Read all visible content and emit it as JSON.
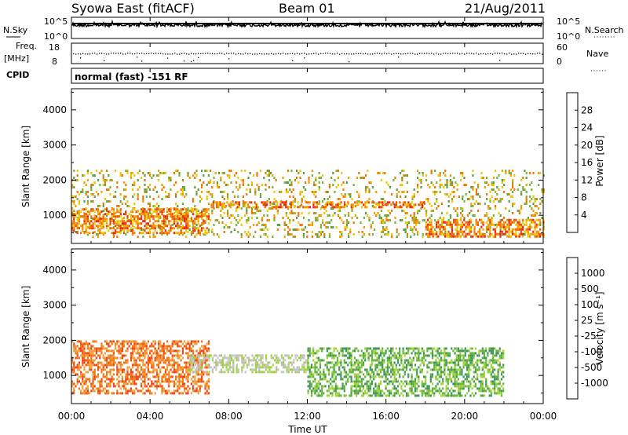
{
  "header": {
    "station": "Syowa East (fitACF)",
    "beam": "Beam 01",
    "date": "21/Aug/2011"
  },
  "strip_nsky": {
    "label_left": "N.Sky",
    "left_ticks": [
      "10^5",
      "10^0"
    ],
    "label_right": "N.Search",
    "right_ticks": [
      "10^5",
      "10^0"
    ]
  },
  "strip_freq": {
    "label_left": "Freq.",
    "label_unit": "[MHz]",
    "left_ticks": [
      "18",
      "8"
    ],
    "label_right": "Nave",
    "right_ticks": [
      "60",
      "0"
    ]
  },
  "cpid": {
    "label": "CPID",
    "text": "normal (fast) -151 RF"
  },
  "colors": {
    "power_scale": [
      "#0a1ef0",
      "#1e46c8",
      "#2e6e9e",
      "#3c8c5a",
      "#5aa040",
      "#78b43c",
      "#f0c800",
      "#f0a000",
      "#f07800",
      "#f05000",
      "#e62814",
      "#d21410"
    ],
    "velocity_scale": [
      "#1e3cb4",
      "#2a5aa0",
      "#3c8270",
      "#3c965a",
      "#64b43c",
      "#a0d23c",
      "#c8c8c8",
      "#bebebe",
      "#f0a03c",
      "#f07814",
      "#f04614",
      "#e61e14"
    ]
  },
  "chart_data": [
    {
      "type": "heatmap",
      "name": "Power",
      "xlabel": "",
      "ylabel": "Slant Range [km]",
      "y_ticks": [
        "1000",
        "2000",
        "3000",
        "4000"
      ],
      "ylim": [
        200,
        4600
      ],
      "colorbar": {
        "label": "Power [dB]",
        "ticks": [
          "4",
          "8",
          "12",
          "16",
          "20",
          "24",
          "28"
        ],
        "range": [
          0,
          32
        ]
      },
      "features": [
        {
          "description": "scatter band",
          "start_hour": 0,
          "end_hour": 24,
          "range_km": [
            400,
            2300
          ],
          "dominant_value": 16
        },
        {
          "description": "strong echo band",
          "start_hour": 0,
          "end_hour": 7,
          "range_km": [
            500,
            1200
          ],
          "dominant_value": 24
        },
        {
          "description": "strong echo band",
          "start_hour": 7,
          "end_hour": 18,
          "range_km": [
            1200,
            1400
          ],
          "dominant_value": 22
        },
        {
          "description": "strong echo band",
          "start_hour": 18,
          "end_hour": 24,
          "range_km": [
            400,
            900
          ],
          "dominant_value": 24
        }
      ]
    },
    {
      "type": "heatmap",
      "name": "Velocity",
      "xlabel": "Time UT",
      "ylabel": "Slant Range [km]",
      "y_ticks": [
        "1000",
        "2000",
        "3000",
        "4000"
      ],
      "ylim": [
        200,
        4600
      ],
      "x_ticks": [
        "00:00",
        "04:00",
        "08:00",
        "12:00",
        "16:00",
        "20:00",
        "00:00"
      ],
      "xlim_hours": [
        0,
        24
      ],
      "colorbar": {
        "label": "Velocity [m s⁻¹]",
        "ticks": [
          "1000",
          "500",
          "100",
          "25",
          "-25",
          "-100",
          "-500",
          "-1000"
        ]
      },
      "features": [
        {
          "description": "negative velocity echoes",
          "start_hour": 0,
          "end_hour": 7,
          "range_km": [
            500,
            2000
          ],
          "dominant_value": -200
        },
        {
          "description": "ground scatter",
          "start_hour": 6,
          "end_hour": 12,
          "range_km": [
            1100,
            1600
          ],
          "dominant_value": 0
        },
        {
          "description": "positive velocity echoes",
          "start_hour": 12,
          "end_hour": 22,
          "range_km": [
            400,
            1800
          ],
          "dominant_value": 100
        }
      ]
    }
  ]
}
